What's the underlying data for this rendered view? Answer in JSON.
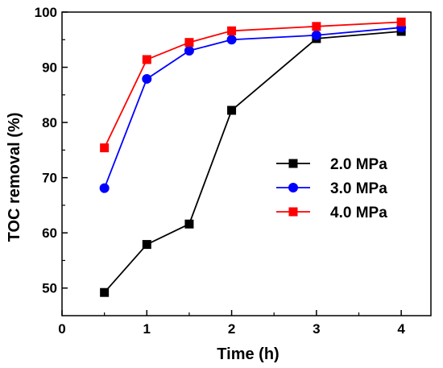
{
  "chart_data": {
    "type": "line",
    "title": "",
    "xlabel": "Time (h)",
    "ylabel": "TOC removal (%)",
    "xlim": [
      0,
      4.35
    ],
    "ylim": [
      45,
      100
    ],
    "xticks": [
      0,
      1,
      2,
      3,
      4
    ],
    "yticks": [
      50,
      60,
      70,
      80,
      90,
      100
    ],
    "x_tick_labels": [
      "0",
      "1",
      "2",
      "3",
      "4"
    ],
    "y_tick_labels": [
      "50",
      "60",
      "70",
      "80",
      "90",
      "100"
    ],
    "grid": false,
    "legend_position": "center-right",
    "series": [
      {
        "name": "2.0 MPa",
        "color": "#000000",
        "marker": "square",
        "x": [
          0.5,
          1,
          1.5,
          2,
          3,
          4
        ],
        "y": [
          49.2,
          57.9,
          61.6,
          82.2,
          95.2,
          96.5
        ]
      },
      {
        "name": "3.0 MPa",
        "color": "#0000ff",
        "marker": "circle",
        "x": [
          0.5,
          1,
          1.5,
          2,
          3,
          4
        ],
        "y": [
          68.1,
          87.9,
          93.0,
          95.0,
          95.8,
          97.2
        ]
      },
      {
        "name": "4.0 MPa",
        "color": "#ff0000",
        "marker": "square",
        "x": [
          0.5,
          1,
          1.5,
          2,
          3,
          4
        ],
        "y": [
          75.4,
          91.4,
          94.5,
          96.6,
          97.4,
          98.2
        ]
      }
    ]
  }
}
